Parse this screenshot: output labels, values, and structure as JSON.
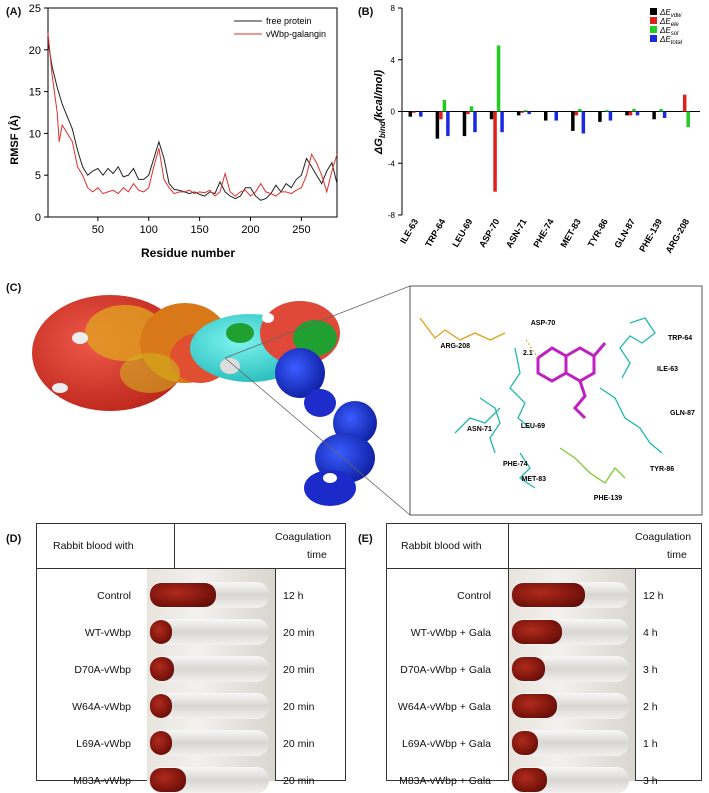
{
  "panels": {
    "a": "(A)",
    "b": "(B)",
    "c": "(C)",
    "d": "(D)",
    "e": "(E)"
  },
  "rmsf_chart": {
    "type": "line",
    "xlabel": "Residue number",
    "ylabel": "RMSF (Å)",
    "xlim": [
      1,
      285
    ],
    "ylim": [
      0,
      25
    ],
    "xticks": [
      "50",
      "100",
      "150",
      "200",
      "250"
    ],
    "yticks": [
      "0",
      "5",
      "10",
      "15",
      "20",
      "25"
    ],
    "legend_position": "top-right",
    "colors": {
      "free": "#222222",
      "gala": "#e0302a"
    },
    "series": [
      {
        "name": "free protein",
        "points": [
          [
            1,
            21
          ],
          [
            5,
            18
          ],
          [
            10,
            15.5
          ],
          [
            15,
            13.5
          ],
          [
            20,
            12
          ],
          [
            25,
            10.5
          ],
          [
            30,
            8
          ],
          [
            35,
            6
          ],
          [
            40,
            5
          ],
          [
            45,
            5.5
          ],
          [
            50,
            5.8
          ],
          [
            55,
            5
          ],
          [
            60,
            5.8
          ],
          [
            65,
            5.2
          ],
          [
            70,
            6
          ],
          [
            75,
            4.8
          ],
          [
            80,
            5
          ],
          [
            85,
            5.8
          ],
          [
            90,
            4.5
          ],
          [
            95,
            4.5
          ],
          [
            100,
            5
          ],
          [
            105,
            7
          ],
          [
            110,
            9
          ],
          [
            115,
            7
          ],
          [
            120,
            4
          ],
          [
            125,
            3.3
          ],
          [
            130,
            3.2
          ],
          [
            135,
            3
          ],
          [
            140,
            2.8
          ],
          [
            145,
            3
          ],
          [
            150,
            2.7
          ],
          [
            155,
            2.5
          ],
          [
            160,
            3
          ],
          [
            165,
            2.8
          ],
          [
            170,
            4.2
          ],
          [
            175,
            3
          ],
          [
            180,
            2.5
          ],
          [
            185,
            2.2
          ],
          [
            190,
            2.5
          ],
          [
            195,
            3.5
          ],
          [
            200,
            3.5
          ],
          [
            205,
            2.5
          ],
          [
            210,
            2
          ],
          [
            215,
            2.2
          ],
          [
            220,
            2.8
          ],
          [
            225,
            3.8
          ],
          [
            230,
            3
          ],
          [
            235,
            4
          ],
          [
            240,
            3.5
          ],
          [
            245,
            4.5
          ],
          [
            250,
            5
          ],
          [
            255,
            7
          ],
          [
            260,
            6
          ],
          [
            265,
            5
          ],
          [
            270,
            4
          ],
          [
            275,
            5.5
          ],
          [
            280,
            6.5
          ],
          [
            285,
            4
          ]
        ]
      },
      {
        "name": "vWbp-galangin",
        "points": [
          [
            1,
            22
          ],
          [
            5,
            17
          ],
          [
            10,
            12.5
          ],
          [
            12,
            9
          ],
          [
            15,
            11
          ],
          [
            20,
            10
          ],
          [
            25,
            9
          ],
          [
            30,
            6
          ],
          [
            35,
            5
          ],
          [
            40,
            3.5
          ],
          [
            45,
            3
          ],
          [
            50,
            3.5
          ],
          [
            55,
            2.8
          ],
          [
            60,
            3
          ],
          [
            65,
            3.2
          ],
          [
            70,
            2.8
          ],
          [
            75,
            3.5
          ],
          [
            80,
            3
          ],
          [
            85,
            4
          ],
          [
            90,
            3.2
          ],
          [
            95,
            3
          ],
          [
            100,
            3.5
          ],
          [
            105,
            6
          ],
          [
            110,
            8.2
          ],
          [
            115,
            4.5
          ],
          [
            120,
            3.5
          ],
          [
            125,
            2.8
          ],
          [
            130,
            3
          ],
          [
            135,
            3
          ],
          [
            140,
            3.2
          ],
          [
            145,
            2.8
          ],
          [
            150,
            3
          ],
          [
            155,
            2.9
          ],
          [
            160,
            3.2
          ],
          [
            165,
            2.5
          ],
          [
            170,
            3
          ],
          [
            175,
            5.2
          ],
          [
            180,
            3
          ],
          [
            185,
            2.5
          ],
          [
            190,
            3
          ],
          [
            195,
            3.2
          ],
          [
            200,
            2.5
          ],
          [
            205,
            3
          ],
          [
            210,
            4
          ],
          [
            215,
            3
          ],
          [
            220,
            2.8
          ],
          [
            225,
            2.5
          ],
          [
            230,
            3
          ],
          [
            235,
            3
          ],
          [
            240,
            2.8
          ],
          [
            245,
            3.2
          ],
          [
            250,
            3.5
          ],
          [
            255,
            5
          ],
          [
            260,
            7.5
          ],
          [
            265,
            6.5
          ],
          [
            270,
            5
          ],
          [
            275,
            3
          ],
          [
            280,
            5.5
          ],
          [
            285,
            7.5
          ]
        ]
      }
    ]
  },
  "energy_chart": {
    "type": "bar",
    "ylabel": "ΔG_bind (kcal/mol)",
    "ylim": [
      -8,
      8
    ],
    "yticks": [
      "8",
      "4",
      "0",
      "-4",
      "-8"
    ],
    "legend_position": "top-right",
    "categories": [
      "ILE-63",
      "TRP-64",
      "LEU-69",
      "ASP-70",
      "ASN-71",
      "PHE-74",
      "MET-83",
      "TYR-86",
      "GLN-87",
      "PHE-139",
      "ARG-208"
    ],
    "series": [
      {
        "name": "ΔE_vdw",
        "color": "#000000",
        "values": [
          -0.4,
          -2.1,
          -1.9,
          -0.6,
          -0.3,
          -0.7,
          -1.5,
          -0.8,
          -0.3,
          -0.6,
          0
        ]
      },
      {
        "name": "ΔE_ele",
        "color": "#e0201a",
        "values": [
          -0.1,
          -0.6,
          -0.2,
          -6.2,
          -0.1,
          0,
          -0.3,
          0,
          -0.3,
          0,
          1.3
        ]
      },
      {
        "name": "ΔE_sol",
        "color": "#22cc22",
        "values": [
          0,
          0.9,
          0.4,
          5.1,
          0.1,
          0,
          0.2,
          0.1,
          0.2,
          0.2,
          -1.2
        ]
      },
      {
        "name": "ΔE_total",
        "color": "#1a2ae0",
        "values": [
          -0.4,
          -1.9,
          -1.6,
          -1.6,
          -0.2,
          -0.7,
          -1.7,
          -0.7,
          -0.3,
          -0.5,
          0
        ]
      }
    ]
  },
  "residues_c": [
    "ARG-208",
    "ASP-70",
    "2.1",
    "TRP-64",
    "ILE-63",
    "GLN-87",
    "ASN-71",
    "LEU-69",
    "PHE-74",
    "MET-83",
    "TYR-86",
    "PHE-139"
  ],
  "table_d": {
    "header_left": "Rabbit blood with",
    "header_right_1": "Coagulation",
    "header_right_2": "time",
    "rows": [
      {
        "label": "Control",
        "time": "12 h",
        "clot": 0.55
      },
      {
        "label": "WT-vWbp",
        "time": "20 min",
        "clot": 0.15
      },
      {
        "label": "D70A-vWbp",
        "time": "20 min",
        "clot": 0.2
      },
      {
        "label": "W64A-vWbp",
        "time": "20 min",
        "clot": 0.14
      },
      {
        "label": "L69A-vWbp",
        "time": "20 min",
        "clot": 0.15
      },
      {
        "label": "M83A-vWbp",
        "time": "20 min",
        "clot": 0.3
      }
    ]
  },
  "table_e": {
    "header_left": "Rabbit blood with",
    "header_right_1": "Coagulation",
    "header_right_2": "time",
    "rows": [
      {
        "label": "Control",
        "time": "12 h",
        "clot": 0.62
      },
      {
        "label": "WT-vWbp + Gala",
        "time": "4 h",
        "clot": 0.42
      },
      {
        "label": "D70A-vWbp + Gala",
        "time": "3 h",
        "clot": 0.28
      },
      {
        "label": "W64A-vWbp + Gala",
        "time": "2 h",
        "clot": 0.38
      },
      {
        "label": "L69A-vWbp + Gala",
        "time": "1 h",
        "clot": 0.22
      },
      {
        "label": "M83A-vWbp + Gala",
        "time": "3 h",
        "clot": 0.3
      }
    ]
  }
}
